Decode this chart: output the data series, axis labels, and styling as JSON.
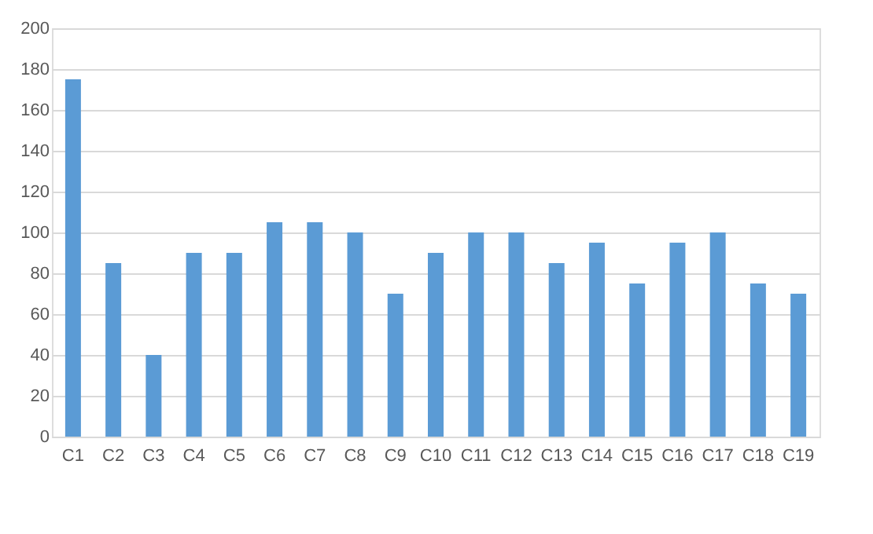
{
  "chart_data": {
    "type": "bar",
    "categories": [
      "C1",
      "C2",
      "C3",
      "C4",
      "C5",
      "C6",
      "C7",
      "C8",
      "C9",
      "C10",
      "C11",
      "C12",
      "C13",
      "C14",
      "C15",
      "C16",
      "C17",
      "C18",
      "C19"
    ],
    "values": [
      175,
      85,
      40,
      90,
      90,
      105,
      105,
      100,
      70,
      90,
      100,
      100,
      85,
      95,
      75,
      95,
      100,
      75,
      70
    ],
    "color": "#5b9bd5",
    "ylim": [
      0,
      200
    ],
    "yticks": [
      0,
      20,
      40,
      60,
      80,
      100,
      120,
      140,
      160,
      180,
      200
    ],
    "grid": "y"
  }
}
